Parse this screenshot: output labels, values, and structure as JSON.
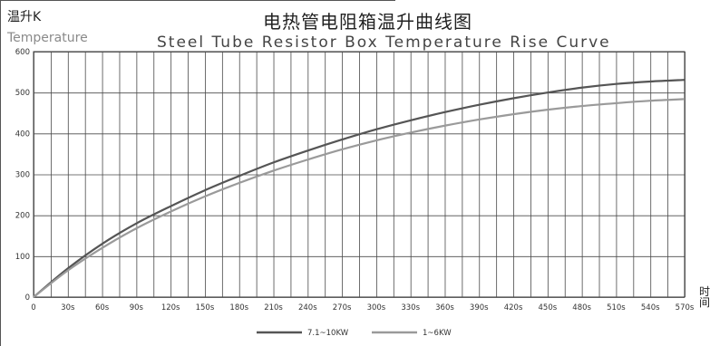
{
  "chart_data": {
    "type": "line",
    "title": "电热管电阻箱温升曲线图",
    "subtitle": "Steel Tube Resistor Box Temperature Rise Curve",
    "ylabel": "温升K",
    "ylabel_en": "Temperature",
    "xlabel": "时间",
    "xlim": [
      0,
      570
    ],
    "ylim": [
      0,
      600
    ],
    "yticks": [
      0,
      100,
      200,
      300,
      400,
      500,
      600
    ],
    "xtick_labels": [
      "0",
      "30s",
      "60s",
      "90s",
      "120s",
      "150s",
      "180s",
      "210s",
      "240s",
      "270s",
      "300s",
      "330s",
      "360s",
      "390s",
      "420s",
      "450s",
      "480s",
      "510s",
      "540s",
      "570s"
    ],
    "xtick_values": [
      0,
      30,
      60,
      90,
      120,
      150,
      180,
      210,
      240,
      270,
      300,
      330,
      360,
      390,
      420,
      450,
      480,
      510,
      540,
      570
    ],
    "x_minor_step": 15,
    "grid": true,
    "legend_position": "bottom",
    "series": [
      {
        "name": "7.1~10KW",
        "color": "#555555",
        "x": [
          0,
          30,
          60,
          90,
          120,
          150,
          180,
          210,
          240,
          270,
          300,
          330,
          360,
          390,
          420,
          450,
          480,
          510,
          540,
          570
        ],
        "y": [
          0,
          70,
          130,
          180,
          222,
          261,
          296,
          329,
          358,
          385,
          410,
          432,
          452,
          470,
          486,
          500,
          512,
          521,
          527,
          531
        ]
      },
      {
        "name": "1~6KW",
        "color": "#9a9a9a",
        "x": [
          0,
          30,
          60,
          90,
          120,
          150,
          180,
          210,
          240,
          270,
          300,
          330,
          360,
          390,
          420,
          450,
          480,
          510,
          540,
          570
        ],
        "y": [
          0,
          65,
          120,
          168,
          209,
          246,
          279,
          309,
          336,
          361,
          383,
          402,
          419,
          434,
          447,
          458,
          467,
          474,
          480,
          484
        ]
      }
    ]
  }
}
